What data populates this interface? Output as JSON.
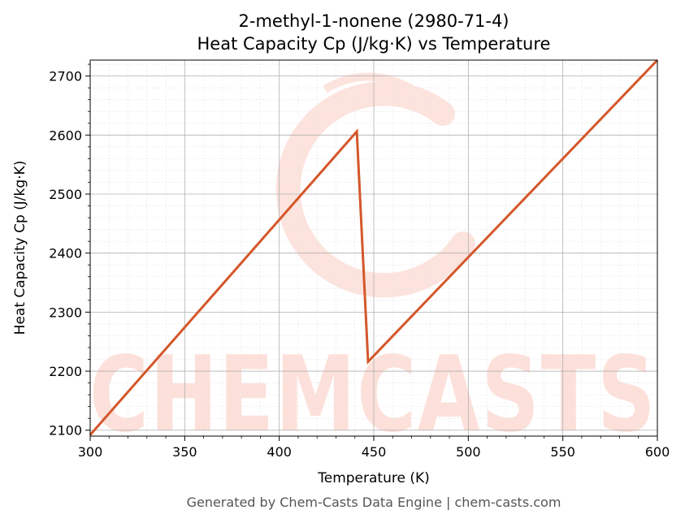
{
  "chart_data": {
    "type": "line",
    "title": "2-methyl-1-nonene (2980-71-4)",
    "subtitle": "Heat Capacity Cp (J/kg·K) vs Temperature",
    "xlabel": "Temperature (K)",
    "ylabel": "Heat Capacity Cp (J/kg·K)",
    "xlim": [
      300,
      600
    ],
    "ylim": [
      2090,
      2727
    ],
    "xticks": [
      300,
      350,
      400,
      450,
      500,
      550,
      600
    ],
    "yticks": [
      2100,
      2200,
      2300,
      2400,
      2500,
      2600,
      2700
    ],
    "grid": true,
    "series": [
      {
        "color": "#d4572a",
        "x": [
          300,
          441,
          447,
          600
        ],
        "y": [
          2092,
          2606,
          2216,
          2727
        ]
      }
    ]
  },
  "watermark": {
    "text": "CHEMCASTS",
    "color": "#fde0da"
  },
  "footer": "Generated by Chem-Casts Data Engine | chem-casts.com"
}
